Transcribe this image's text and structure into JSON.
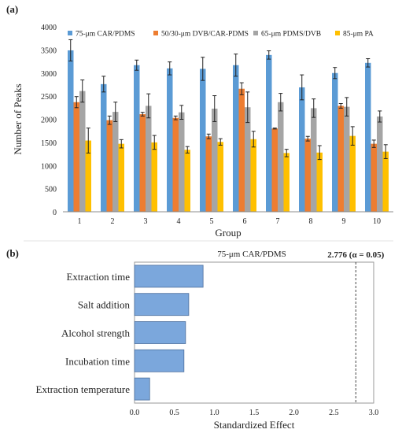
{
  "chart_data": [
    {
      "panel_label": "(a)",
      "type": "bar",
      "xlabel": "Group",
      "ylabel": "Number of Peaks",
      "ylim": [
        0,
        4000
      ],
      "yticks": [
        0,
        500,
        1000,
        1500,
        2000,
        2500,
        3000,
        3500,
        4000
      ],
      "grid": false,
      "legend_position": "top",
      "categories": [
        "1",
        "2",
        "3",
        "4",
        "5",
        "6",
        "7",
        "8",
        "9",
        "10"
      ],
      "series": [
        {
          "name": "75-μm CAR/PDMS",
          "color": "#5B9BD5",
          "values": [
            3490,
            2760,
            3170,
            3100,
            3090,
            3170,
            3390,
            2690,
            3000,
            3220
          ],
          "errors": [
            230,
            170,
            110,
            140,
            250,
            240,
            90,
            270,
            120,
            90
          ]
        },
        {
          "name": "50/30-μm DVB/CAR-PDMS",
          "color": "#ED7D31",
          "values": [
            2370,
            1980,
            2110,
            2030,
            1630,
            2660,
            1800,
            1580,
            2290,
            1470
          ],
          "errors": [
            120,
            90,
            40,
            40,
            50,
            130,
            10,
            50,
            50,
            80
          ]
        },
        {
          "name": "65-μm PDMS/DVB",
          "color": "#A5A5A5",
          "values": [
            2610,
            2160,
            2290,
            2150,
            2230,
            2260,
            2370,
            2240,
            2270,
            2060
          ],
          "errors": [
            240,
            210,
            260,
            150,
            280,
            330,
            190,
            200,
            200,
            120
          ]
        },
        {
          "name": "85-μm PA",
          "color": "#FFC000",
          "values": [
            1540,
            1470,
            1500,
            1340,
            1510,
            1570,
            1270,
            1280,
            1640,
            1300
          ],
          "errors": [
            270,
            90,
            150,
            70,
            70,
            170,
            80,
            150,
            200,
            150
          ]
        }
      ]
    },
    {
      "panel_label": "(b)",
      "type": "bar",
      "orientation": "horizontal",
      "title": "75-μm CAR/PDMS",
      "xlabel": "Standardized Effect",
      "xlim": [
        0,
        3.0
      ],
      "xticks": [
        0.0,
        0.5,
        1.0,
        1.5,
        2.0,
        2.5,
        3.0
      ],
      "xtick_labels": [
        "0.0",
        "0.5",
        "1.0",
        "1.5",
        "2.0",
        "2.5",
        "3.0"
      ],
      "grid": false,
      "categories": [
        "Extraction time",
        "Salt addition",
        "Alcohol strength",
        "Incubation time",
        "Extraction temperature"
      ],
      "values": [
        0.86,
        0.68,
        0.64,
        0.62,
        0.19
      ],
      "bar_color": "#7BA7DC",
      "reference_line": {
        "value": 2.776,
        "label": "2.776 (α = 0.05)",
        "style": "dashed"
      }
    }
  ]
}
